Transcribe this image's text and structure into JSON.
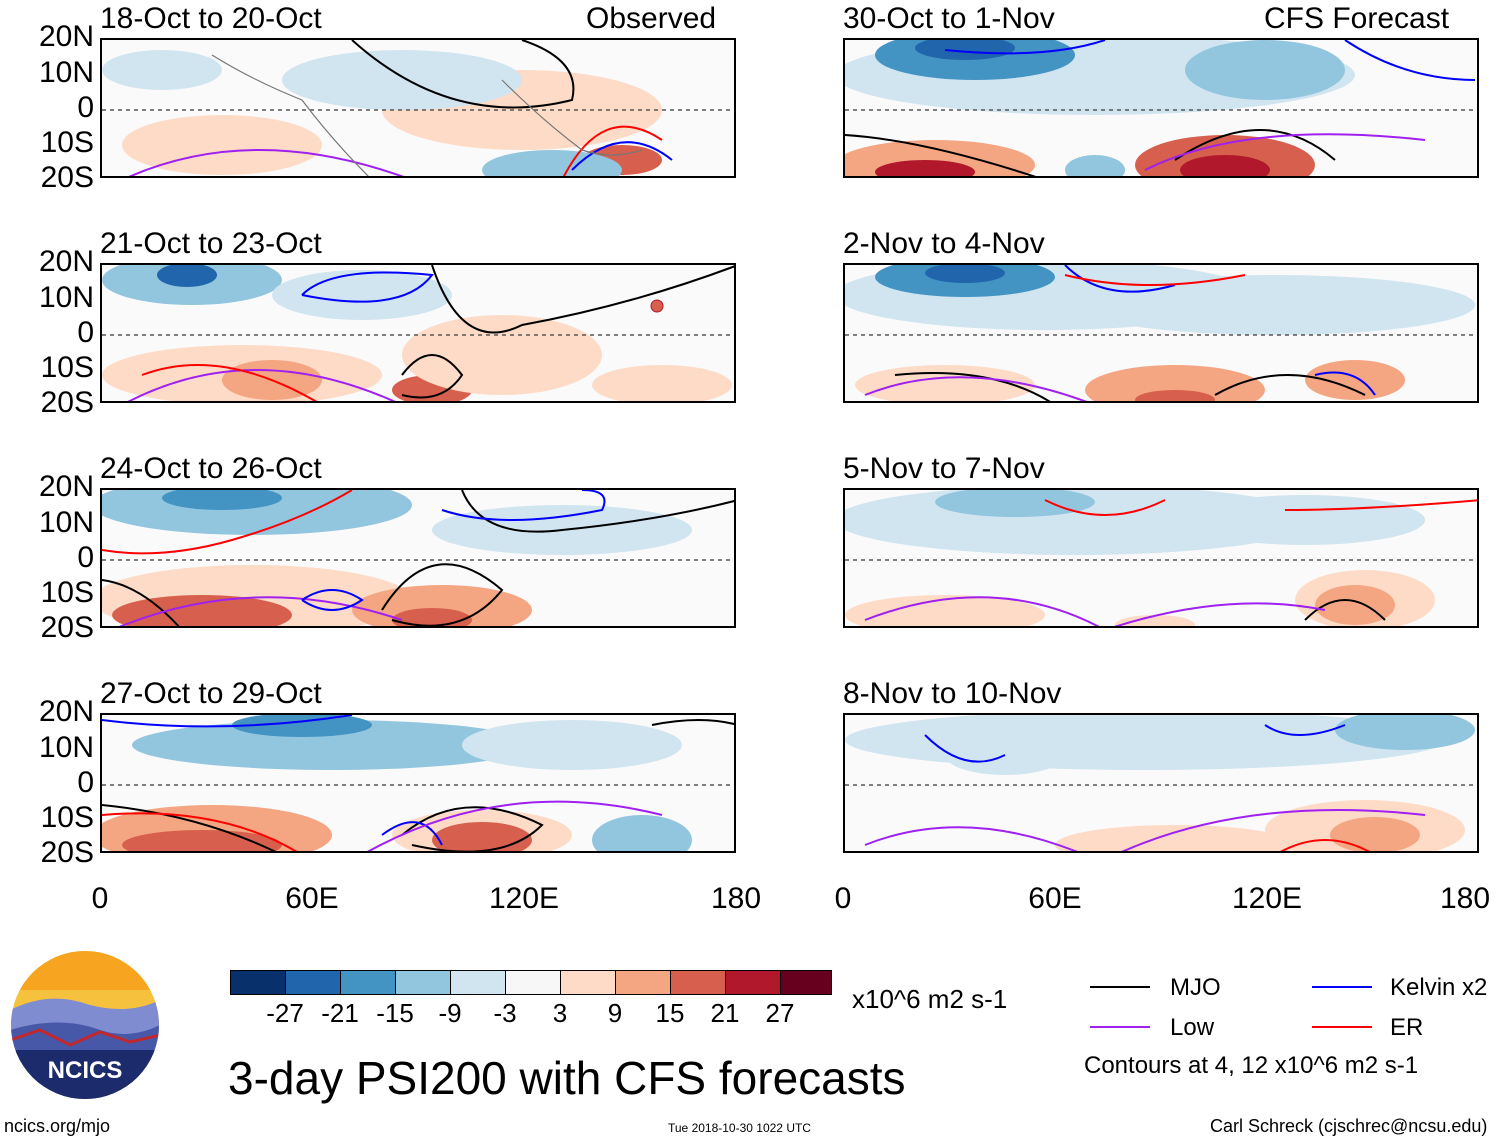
{
  "panels": [
    {
      "id": "p1",
      "title": "18-Oct to 20-Oct",
      "tag": "Observed"
    },
    {
      "id": "p2",
      "title": "21-Oct to 23-Oct",
      "tag": ""
    },
    {
      "id": "p3",
      "title": "24-Oct to 26-Oct",
      "tag": ""
    },
    {
      "id": "p4",
      "title": "27-Oct to 29-Oct",
      "tag": ""
    },
    {
      "id": "p5",
      "title": "30-Oct to 1-Nov",
      "tag": "CFS Forecast"
    },
    {
      "id": "p6",
      "title": "2-Nov to 4-Nov",
      "tag": ""
    },
    {
      "id": "p7",
      "title": "5-Nov to 7-Nov",
      "tag": ""
    },
    {
      "id": "p8",
      "title": "8-Nov to 10-Nov",
      "tag": ""
    }
  ],
  "axes": {
    "lat_labels": [
      "20N",
      "10N",
      "0",
      "10S",
      "20S"
    ],
    "lon_labels": [
      "0",
      "60E",
      "120E",
      "180"
    ]
  },
  "colorbar": {
    "tick_labels": [
      "-27",
      "-21",
      "-15",
      "-9",
      "-3",
      "3",
      "9",
      "15",
      "21",
      "27"
    ],
    "units": "x10^6 m2 s-1",
    "colors": [
      "#08306b",
      "#2166ac",
      "#4393c3",
      "#92c5de",
      "#d1e5f0",
      "#f7f7f7",
      "#fddbc7",
      "#f4a582",
      "#d6604d",
      "#b2182b",
      "#67001f"
    ]
  },
  "legend": {
    "items": [
      {
        "label": "MJO",
        "color": "#000000"
      },
      {
        "label": "Kelvin x2",
        "color": "#0000ff"
      },
      {
        "label": "Low",
        "color": "#a020f0"
      },
      {
        "label": "ER",
        "color": "#ff0000"
      }
    ],
    "note": "Contours at 4, 12 x10^6 m2 s-1"
  },
  "logo_text": "NCICS",
  "main_title": "3-day PSI200 with CFS forecasts",
  "footer": {
    "left": "ncics.org/mjo",
    "center": "Tue 2018-10-30 1022 UTC",
    "right": "Carl Schreck (cjschrec@ncsu.edu)"
  }
}
